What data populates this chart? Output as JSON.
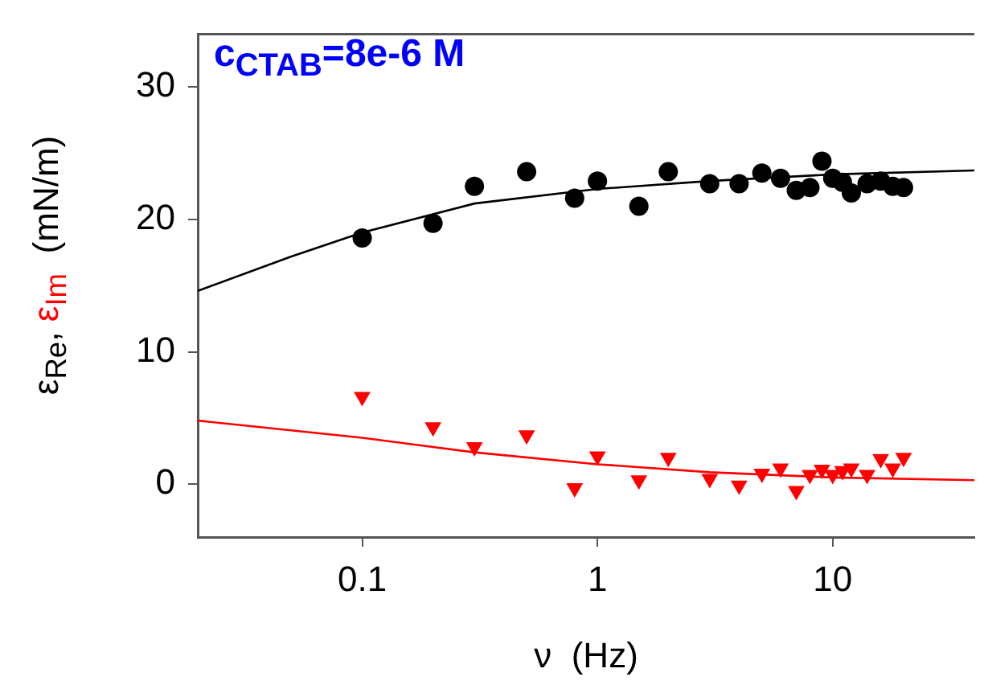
{
  "chart_data": {
    "type": "scatter",
    "xlabel": "ν  (Hz)",
    "ylabel": "(mN/m)",
    "log": "x",
    "grid": false,
    "legend": false,
    "xlim": [
      0.02,
      40
    ],
    "xticks": [
      0.1,
      1,
      10
    ],
    "ylim": [
      -4,
      34
    ],
    "yticks": [
      0,
      10,
      20,
      30
    ],
    "annotations": [
      "c$_{CTAB}$=8e-6 M"
    ],
    "series": [
      {
        "name": "ε$_{Re}$,",
        "type": "scatter",
        "marker": "circle",
        "color": "#000000",
        "x": [
          0.1,
          0.2,
          0.3,
          0.5,
          0.8,
          1,
          1.5,
          2,
          3,
          4,
          5,
          6,
          7,
          8,
          9,
          10,
          11,
          12,
          14,
          16,
          18,
          20
        ],
        "values": [
          18.6,
          19.7,
          22.5,
          23.6,
          21.6,
          22.9,
          21.0,
          23.6,
          22.7,
          22.7,
          23.5,
          23.1,
          22.2,
          22.4,
          24.4,
          23.1,
          22.8,
          22.0,
          22.7,
          22.9,
          22.5,
          22.4
        ]
      },
      {
        "name": "ε$_{Im}$",
        "type": "scatter",
        "marker": "triangle",
        "color": "#ff0000",
        "x": [
          0.1,
          0.2,
          0.3,
          0.5,
          0.8,
          1,
          1.5,
          2,
          3,
          4,
          5,
          6,
          7,
          8,
          9,
          10,
          11,
          12,
          14,
          16,
          18,
          20
        ],
        "values": [
          6.6,
          4.3,
          2.8,
          3.7,
          -0.3,
          2.1,
          0.3,
          2.0,
          0.4,
          -0.1,
          0.8,
          1.2,
          -0.5,
          0.7,
          1.1,
          0.7,
          1.0,
          1.2,
          0.7,
          1.9,
          1.2,
          2.0
        ]
      },
      {
        "type": "line",
        "marker": "none",
        "color": "#000000",
        "x": [
          0.02,
          0.05,
          0.1,
          0.3,
          1,
          3,
          10,
          40
        ],
        "values": [
          14.6,
          17.2,
          19.0,
          21.2,
          22.3,
          22.9,
          23.4,
          23.7
        ]
      },
      {
        "type": "line",
        "marker": "none",
        "color": "#ff0000",
        "x": [
          0.02,
          0.1,
          0.3,
          1,
          3,
          10,
          40
        ],
        "values": [
          4.8,
          3.5,
          2.4,
          1.5,
          0.9,
          0.5,
          0.3
        ]
      }
    ]
  }
}
